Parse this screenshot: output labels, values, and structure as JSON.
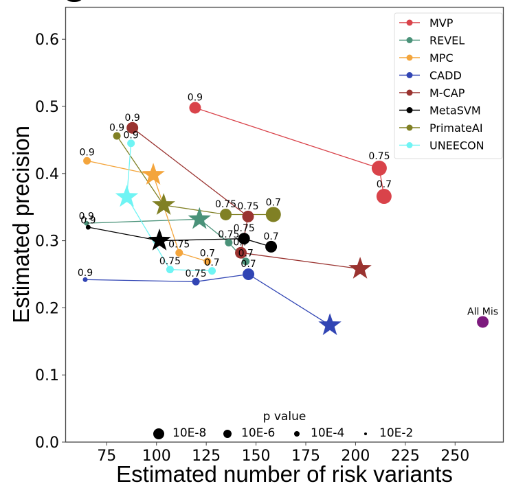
{
  "chart_data": {
    "type": "scatter",
    "title": "",
    "xlabel": "Estimated number of risk variants",
    "ylabel": "Estimated precision",
    "xlim": [
      55,
      276
    ],
    "ylim": [
      0.0,
      0.645
    ],
    "xticks": [
      75,
      100,
      125,
      150,
      175,
      200,
      225,
      250
    ],
    "yticks": [
      0.0,
      0.1,
      0.2,
      0.3,
      0.4,
      0.5,
      0.6
    ],
    "xtick_labels": [
      "75",
      "100",
      "125",
      "150",
      "175",
      "200",
      "225",
      "250"
    ],
    "ytick_labels": [
      "0.0",
      "0.1",
      "0.2",
      "0.3",
      "0.4",
      "0.5",
      "0.6"
    ],
    "grid": false,
    "legend_position": "top-right",
    "series": [
      {
        "name": "MVP",
        "color": "#d9434a",
        "points": [
          {
            "x": 119.4,
            "y": 0.498,
            "label": "0.9",
            "pvalue": "10E-6",
            "marker": "circle"
          },
          {
            "x": 211.9,
            "y": 0.408,
            "label": "0.75",
            "pvalue": "10E-8",
            "marker": "circle"
          },
          {
            "x": 214.3,
            "y": 0.366,
            "label": "0.7",
            "pvalue": "10E-8",
            "marker": "circle"
          }
        ]
      },
      {
        "name": "REVEL",
        "color": "#4a9279",
        "points": [
          {
            "x": 64.8,
            "y": 0.326,
            "label": "0.9",
            "pvalue": "10E-2",
            "marker": "circle"
          },
          {
            "x": 121.6,
            "y": 0.332,
            "label": "",
            "pvalue": "10E-8",
            "marker": "star"
          },
          {
            "x": 136.3,
            "y": 0.297,
            "label": "0.75",
            "pvalue": "10E-4",
            "marker": "circle"
          },
          {
            "x": 144.9,
            "y": 0.269,
            "label": "0.7",
            "pvalue": "10E-4",
            "marker": "circle"
          }
        ]
      },
      {
        "name": "MPC",
        "color": "#f4a53c",
        "points": [
          {
            "x": 65.1,
            "y": 0.419,
            "label": "0.9",
            "pvalue": "10E-4",
            "marker": "circle"
          },
          {
            "x": 98.4,
            "y": 0.398,
            "label": "",
            "pvalue": "10E-8",
            "marker": "star"
          },
          {
            "x": 111.4,
            "y": 0.282,
            "label": "0.75",
            "pvalue": "10E-4",
            "marker": "circle"
          },
          {
            "x": 125.6,
            "y": 0.269,
            "label": "0.7",
            "pvalue": "10E-4",
            "marker": "circle"
          }
        ]
      },
      {
        "name": "CADD",
        "color": "#3145b4",
        "points": [
          {
            "x": 64.2,
            "y": 0.242,
            "label": "0.9",
            "pvalue": "10E-2",
            "marker": "circle"
          },
          {
            "x": 119.8,
            "y": 0.239,
            "label": "0.75",
            "pvalue": "10E-4",
            "marker": "circle"
          },
          {
            "x": 146.2,
            "y": 0.25,
            "label": "0.7",
            "pvalue": "10E-6",
            "marker": "circle"
          },
          {
            "x": 187.1,
            "y": 0.174,
            "label": "",
            "pvalue": "10E-8",
            "marker": "star"
          }
        ]
      },
      {
        "name": "M-CAP",
        "color": "#9a3330",
        "points": [
          {
            "x": 87.9,
            "y": 0.468,
            "label": "0.9",
            "pvalue": "10E-6",
            "marker": "circle"
          },
          {
            "x": 146.0,
            "y": 0.336,
            "label": "0.75",
            "pvalue": "10E-6",
            "marker": "circle"
          },
          {
            "x": 142.4,
            "y": 0.282,
            "label": "0.7",
            "pvalue": "10E-6",
            "marker": "circle"
          },
          {
            "x": 202.3,
            "y": 0.258,
            "label": "",
            "pvalue": "10E-8",
            "marker": "star"
          }
        ]
      },
      {
        "name": "MetaSVM",
        "color": "#000000",
        "points": [
          {
            "x": 65.7,
            "y": 0.32,
            "label": "0.9",
            "pvalue": "10E-2",
            "marker": "circle"
          },
          {
            "x": 101.5,
            "y": 0.3,
            "label": "",
            "pvalue": "10E-8",
            "marker": "star"
          },
          {
            "x": 144.0,
            "y": 0.303,
            "label": "0.75",
            "pvalue": "10E-6",
            "marker": "circle"
          },
          {
            "x": 157.6,
            "y": 0.291,
            "label": "0.7",
            "pvalue": "10E-6",
            "marker": "circle"
          }
        ]
      },
      {
        "name": "PrimateAI",
        "color": "#808024",
        "points": [
          {
            "x": 80.1,
            "y": 0.456,
            "label": "0.9",
            "pvalue": "10E-4",
            "marker": "circle"
          },
          {
            "x": 103.6,
            "y": 0.353,
            "label": "",
            "pvalue": "10E-8",
            "marker": "star"
          },
          {
            "x": 134.8,
            "y": 0.339,
            "label": "0.75",
            "pvalue": "10E-6",
            "marker": "circle"
          },
          {
            "x": 158.7,
            "y": 0.339,
            "label": "0.7",
            "pvalue": "10E-8",
            "marker": "circle"
          }
        ]
      },
      {
        "name": "UNEECON",
        "color": "#6ff4f4",
        "points": [
          {
            "x": 87.2,
            "y": 0.445,
            "label": "0.9",
            "pvalue": "10E-4",
            "marker": "circle"
          },
          {
            "x": 85.1,
            "y": 0.365,
            "label": "",
            "pvalue": "10E-8",
            "marker": "star"
          },
          {
            "x": 106.8,
            "y": 0.257,
            "label": "0.75",
            "pvalue": "10E-4",
            "marker": "circle"
          },
          {
            "x": 127.9,
            "y": 0.255,
            "label": "0.7",
            "pvalue": "10E-4",
            "marker": "circle"
          }
        ]
      }
    ],
    "extra_points": [
      {
        "name": "All Mis",
        "x": 263.9,
        "y": 0.179,
        "label": "All Mis",
        "color": "#7d1a7e",
        "pvalue": "10E-6",
        "marker": "circle"
      }
    ],
    "size_legend": {
      "title": "p value",
      "entries": [
        "10E-8",
        "10E-6",
        "10E-4",
        "10E-2"
      ]
    }
  }
}
